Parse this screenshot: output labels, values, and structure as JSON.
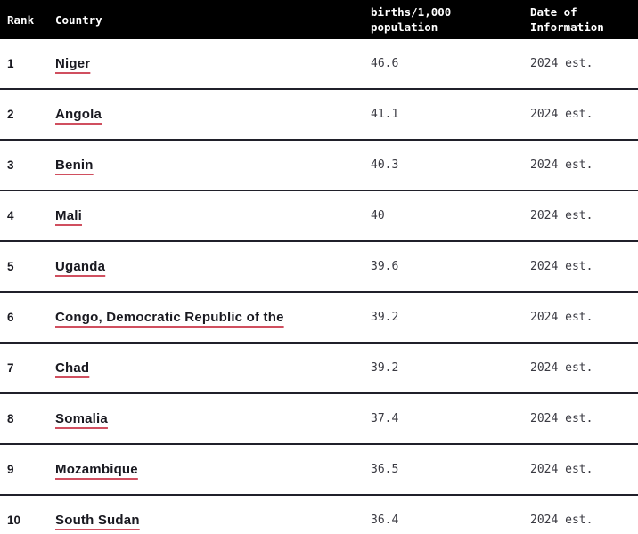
{
  "colors": {
    "header_bg": "#000000",
    "header_text": "#ffffff",
    "text_dark": "#191920",
    "value_text": "#3a3a42",
    "link_underline": "#d04f5f",
    "row_border": "#20202a",
    "page_bg": "#ffffff"
  },
  "table": {
    "columns": {
      "rank_label": "Rank",
      "country_label": "Country",
      "value_label": "births/1,000\npopulation",
      "date_label": "Date of\nInformation"
    },
    "rows": [
      {
        "rank": "1",
        "country": "Niger",
        "value": "46.6",
        "date": "2024 est."
      },
      {
        "rank": "2",
        "country": "Angola",
        "value": "41.1",
        "date": "2024 est."
      },
      {
        "rank": "3",
        "country": "Benin",
        "value": "40.3",
        "date": "2024 est."
      },
      {
        "rank": "4",
        "country": "Mali",
        "value": "40",
        "date": "2024 est."
      },
      {
        "rank": "5",
        "country": "Uganda",
        "value": "39.6",
        "date": "2024 est."
      },
      {
        "rank": "6",
        "country": "Congo, Democratic Republic of the",
        "value": "39.2",
        "date": "2024 est."
      },
      {
        "rank": "7",
        "country": "Chad",
        "value": "39.2",
        "date": "2024 est."
      },
      {
        "rank": "8",
        "country": "Somalia",
        "value": "37.4",
        "date": "2024 est."
      },
      {
        "rank": "9",
        "country": "Mozambique",
        "value": "36.5",
        "date": "2024 est."
      },
      {
        "rank": "10",
        "country": "South Sudan",
        "value": "36.4",
        "date": "2024 est."
      }
    ]
  }
}
